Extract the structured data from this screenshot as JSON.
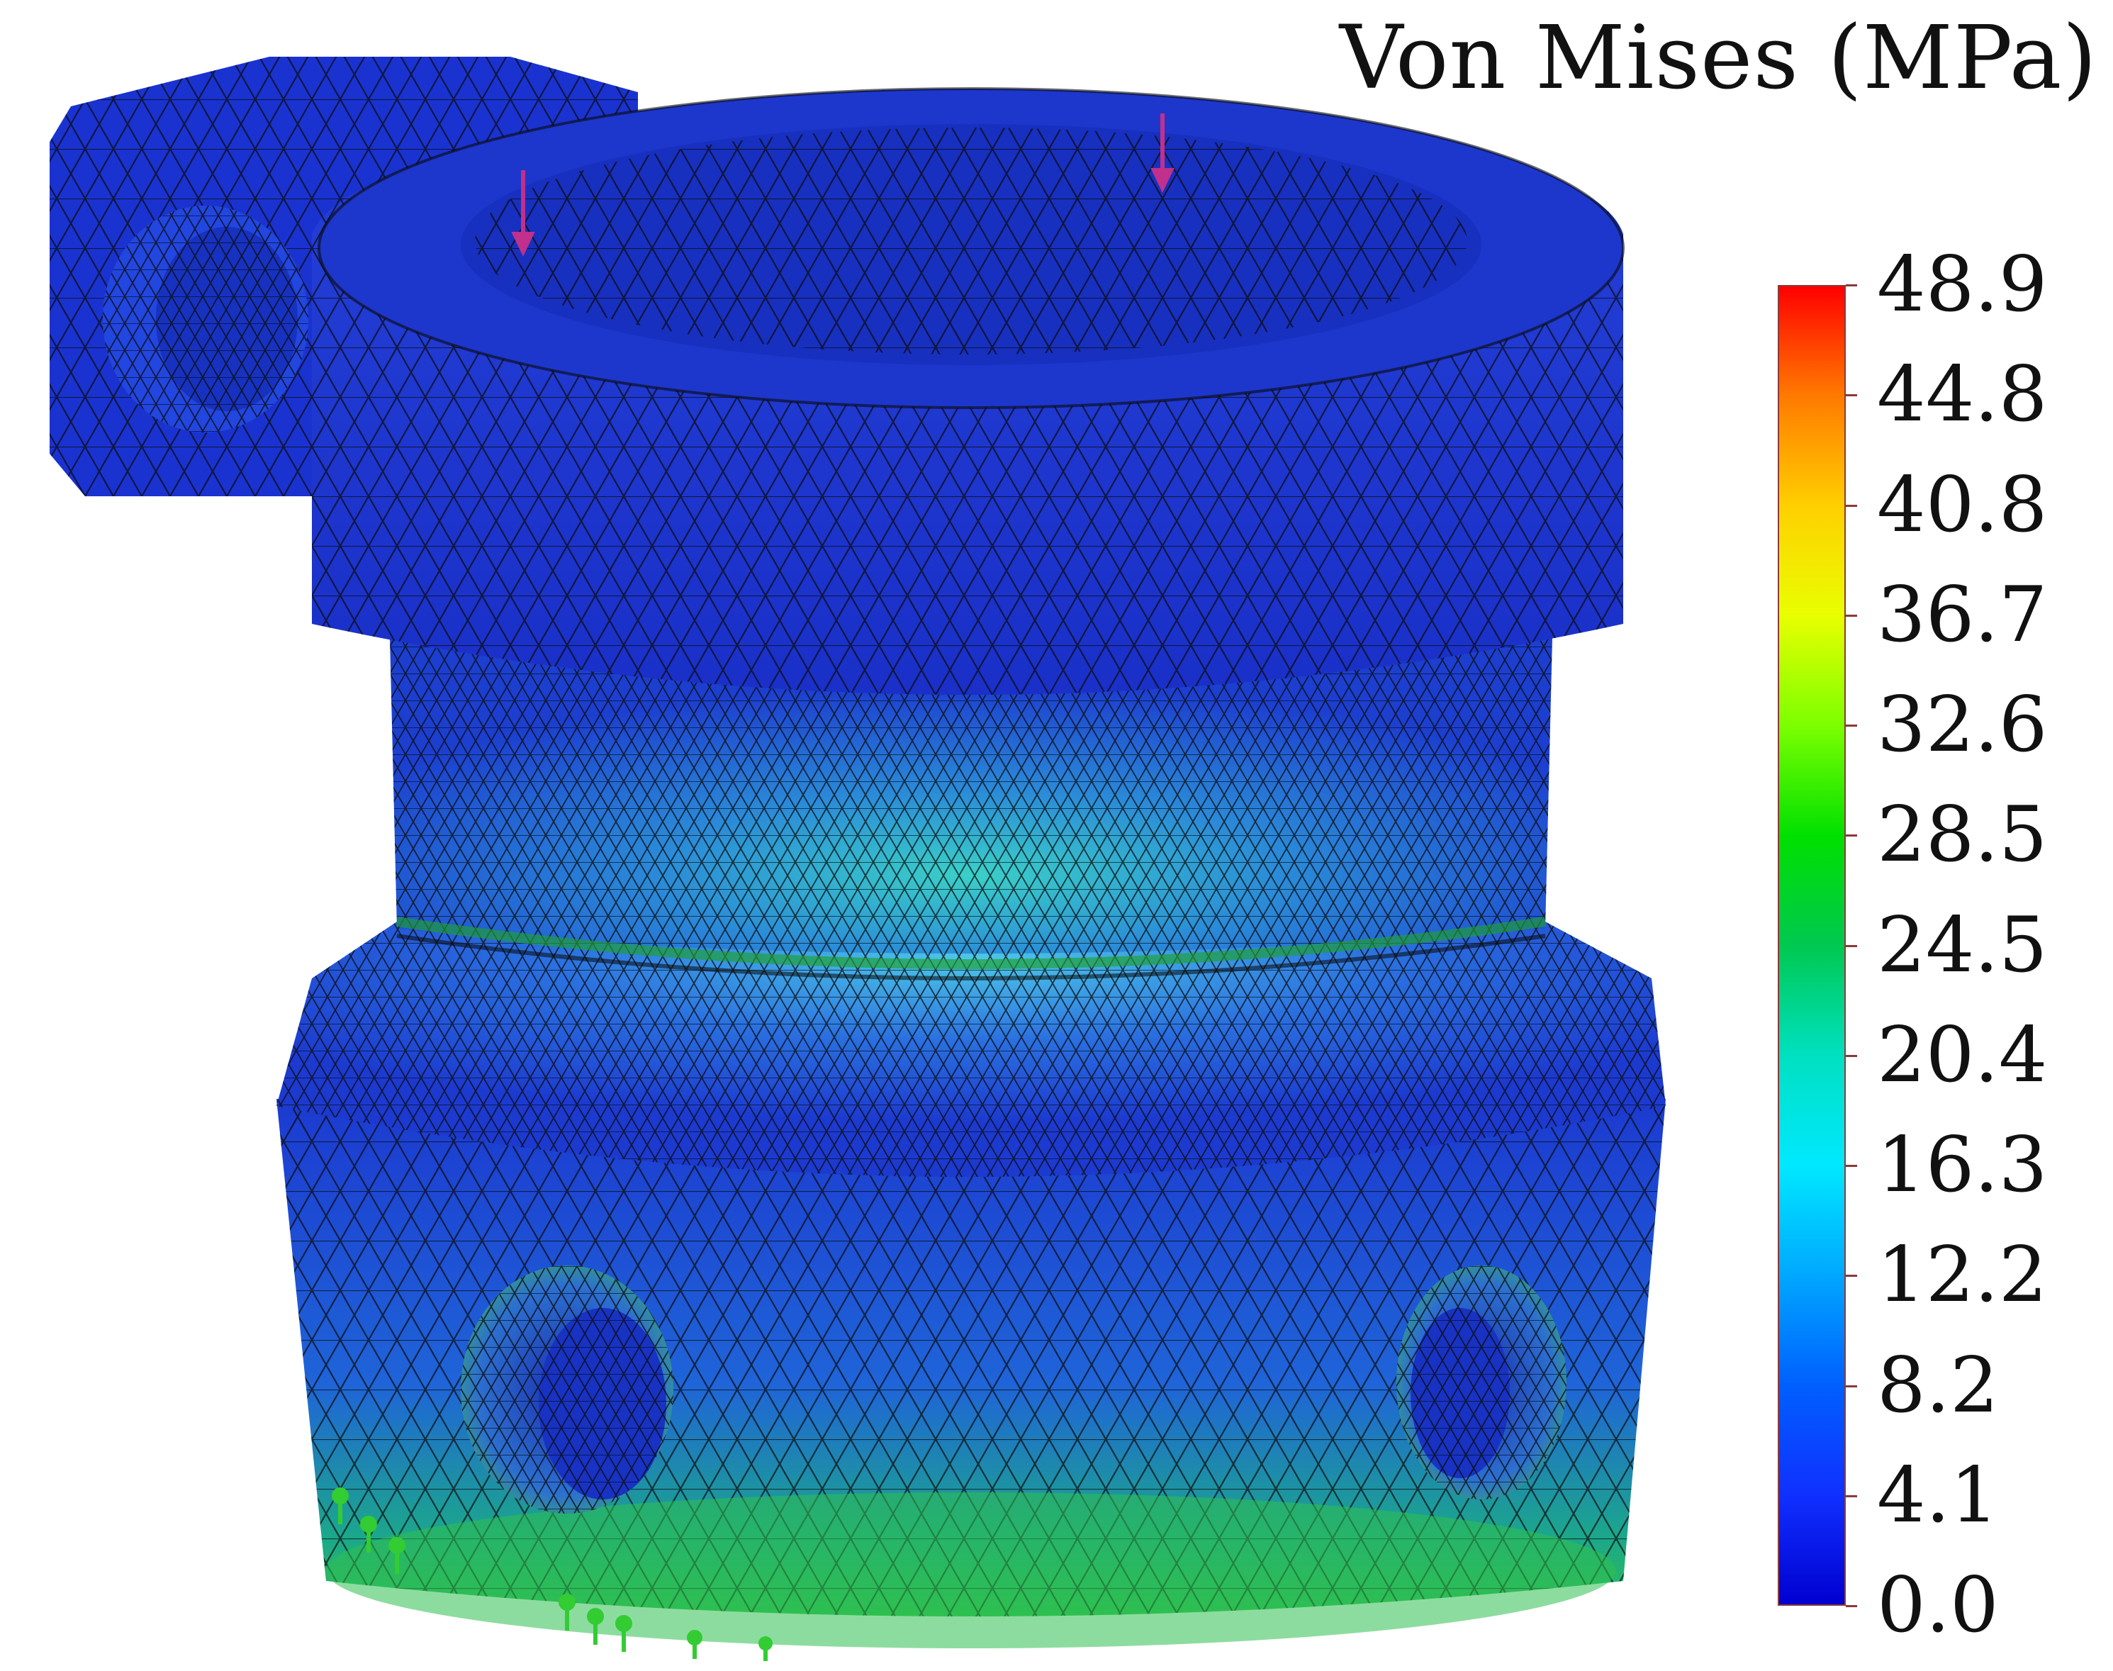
{
  "legend": {
    "title": "Von Mises (MPa)",
    "ticks": [
      "48.9",
      "44.8",
      "40.8",
      "36.7",
      "32.6",
      "28.5",
      "24.5",
      "20.4",
      "16.3",
      "12.2",
      "8.2",
      "4.1",
      "0.0"
    ],
    "max": 48.9,
    "min": 0.0,
    "colormap": [
      "#ff0000",
      "#ff7a00",
      "#ffd000",
      "#e8ff00",
      "#7cff00",
      "#00e000",
      "#00c850",
      "#00e0c0",
      "#00e8ff",
      "#00a8ff",
      "#0060ff",
      "#1030ff",
      "#0000d0"
    ]
  },
  "model": {
    "subject": "stress-plot-of-cylindrical-housing",
    "body_color": "#1f3fd8",
    "mesh_color": "#0a0a0a",
    "high_stress_color": "#2ecc40",
    "fixture_color": "#33cc33",
    "load_arrow_color": "#c0308c"
  }
}
